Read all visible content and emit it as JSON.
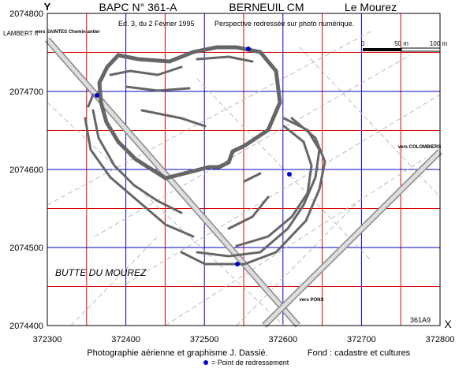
{
  "header": {
    "axis_y": "Y",
    "title": "BAPC N° 361-A",
    "site": "BERNEUIL   CM",
    "place": "Le Mourez"
  },
  "map": {
    "projection": "LAMBERT II",
    "edition": "Ed. 3, du 2 Février 1995",
    "method": "Perspective redressée sur photo numérique.",
    "scale_labels": [
      "0",
      "50 m",
      "100 m"
    ],
    "labels": {
      "saintes": "vers SAINTES Chemin antier",
      "colombiers": "vers COLOMBIERS",
      "pons": "vers PONS",
      "butte": "BUTTE DU MOUREZ",
      "ref": "361A9",
      "axis_x": "X"
    },
    "xticks": [
      372300,
      372400,
      372500,
      372600,
      372700,
      372800
    ],
    "yticks": [
      2074400,
      2074500,
      2074600,
      2074700,
      2074800
    ]
  },
  "footer": {
    "credit": "Photographie aérienne et graphisme J. Dassié.",
    "background": "Fond : cadastre et cultures",
    "legend": "= Point de redressement"
  }
}
